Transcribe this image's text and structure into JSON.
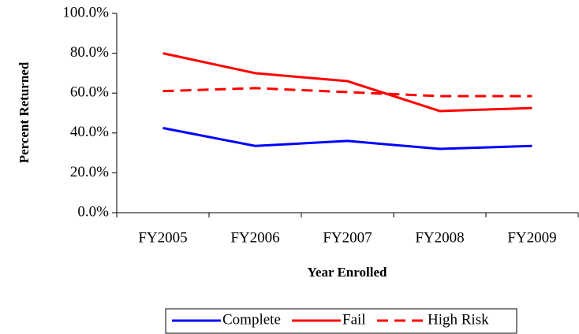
{
  "chart_data": {
    "type": "line",
    "x_label": "Year Enrolled",
    "y_label": "Percent Returned",
    "categories": [
      "FY2005",
      "FY2006",
      "FY2007",
      "FY2008",
      "FY2009"
    ],
    "series": [
      {
        "name": "Complete",
        "color": "#0000ff",
        "dash": false,
        "values": [
          42.5,
          33.5,
          36,
          32,
          33.5
        ]
      },
      {
        "name": "Fail",
        "color": "#ff0000",
        "dash": false,
        "values": [
          80,
          70,
          66,
          51,
          52.5
        ]
      },
      {
        "name": "High Risk",
        "color": "#ff0000",
        "dash": true,
        "values": [
          61,
          62.5,
          60.5,
          58.5,
          58.5
        ]
      }
    ],
    "ylim": [
      0,
      100
    ],
    "yticks": [
      {
        "value": 0,
        "label": "0.0%"
      },
      {
        "value": 20,
        "label": "20.0%"
      },
      {
        "value": 40,
        "label": "40.0%"
      },
      {
        "value": 60,
        "label": "60.0%"
      },
      {
        "value": 80,
        "label": "80.0%"
      },
      {
        "value": 100,
        "label": "100.0%"
      }
    ],
    "grid": false,
    "legend": "bottom"
  }
}
